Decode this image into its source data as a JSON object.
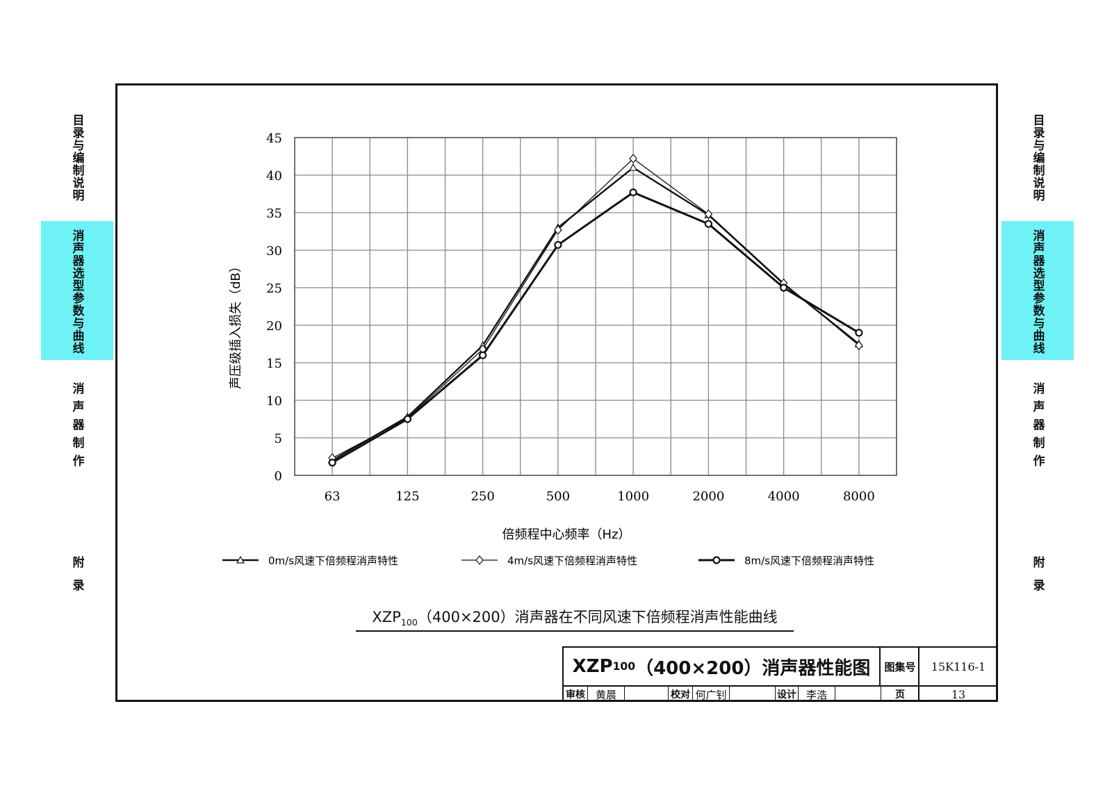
{
  "side_tabs": [
    {
      "label": "目录与编制说明",
      "active": false,
      "style": "normal"
    },
    {
      "label": "消声器选型参数与曲线",
      "active": true,
      "style": "normal"
    },
    {
      "label": "消声器制作",
      "active": false,
      "style": "spread"
    },
    {
      "label": "附录",
      "active": false,
      "style": "wide"
    }
  ],
  "chart_data": {
    "type": "line",
    "xlabel": "倍频程中心频率（Hz）",
    "ylabel": "声压级插入损失（dB）",
    "categories": [
      "63",
      "125",
      "250",
      "500",
      "1000",
      "2000",
      "4000",
      "8000"
    ],
    "ylim": [
      0,
      45
    ],
    "yticks": [
      0,
      5,
      10,
      15,
      20,
      25,
      30,
      35,
      40,
      45
    ],
    "grid": true,
    "legend_position": "bottom",
    "series": [
      {
        "name": "0m/s风速下倍频程消声特性",
        "marker": "triangle",
        "values": [
          2.0,
          7.8,
          17.3,
          33.0,
          41.0,
          34.7,
          25.5,
          17.5
        ]
      },
      {
        "name": "4m/s风速下倍频程消声特性",
        "marker": "diamond",
        "values": [
          2.3,
          7.6,
          16.8,
          32.7,
          42.2,
          34.8,
          25.6,
          17.3
        ]
      },
      {
        "name": "8m/s风速下倍频程消声特性",
        "marker": "circle",
        "values": [
          1.7,
          7.5,
          16.0,
          30.7,
          37.7,
          33.5,
          25.0,
          19.0
        ]
      }
    ],
    "caption": {
      "prefix": "XZP",
      "sub": "100",
      "rest": "（400×200）消声器在不同风速下倍频程消声性能曲线"
    }
  },
  "title_block": {
    "title_prefix": "XZP",
    "title_sub": "100",
    "title_rest": "（400×200）消声器性能图",
    "atlas_label": "图集号",
    "atlas_no": "15K116-1",
    "review_label": "审核",
    "review_name": "黄晨",
    "check_label": "校对",
    "check_name": "何广钊",
    "design_label": "设计",
    "design_name": "李浩",
    "page_label": "页",
    "page_no": "13"
  }
}
